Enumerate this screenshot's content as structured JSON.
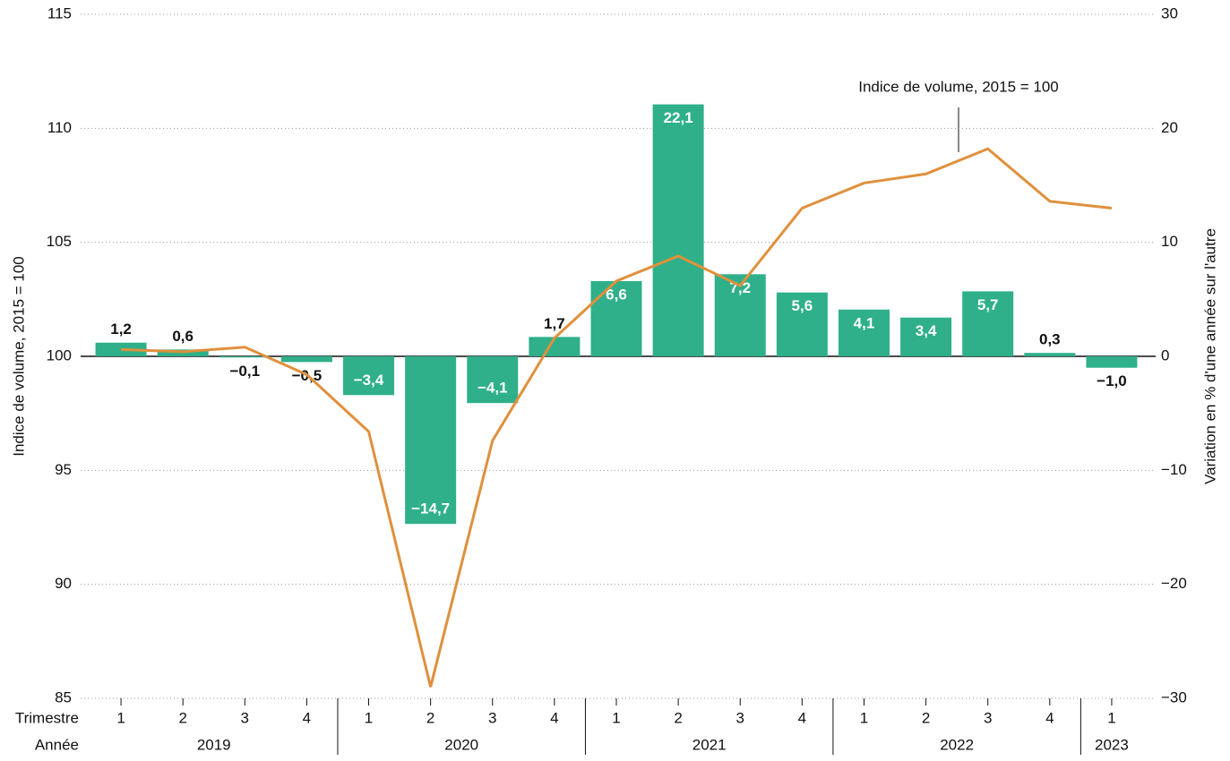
{
  "chart_data": {
    "type": "bar_line",
    "y_label": "Indice de volume, 2015 = 100",
    "y2_label": "Variation en % d'une année sur l'autre",
    "x_row_labels": [
      "Trimestre",
      "Année"
    ],
    "annotation": "Indice de volume, 2015 = 100",
    "categories": [
      "1",
      "2",
      "3",
      "4",
      "1",
      "2",
      "3",
      "4",
      "1",
      "2",
      "3",
      "4",
      "1",
      "2",
      "3",
      "4",
      "1"
    ],
    "year_groups": [
      {
        "label": "2019",
        "count": 4
      },
      {
        "label": "2020",
        "count": 4
      },
      {
        "label": "2021",
        "count": 4
      },
      {
        "label": "2022",
        "count": 4
      },
      {
        "label": "2023",
        "count": 1
      }
    ],
    "ylim": [
      85,
      115
    ],
    "yticks": [
      85,
      90,
      95,
      100,
      105,
      110,
      115
    ],
    "y2lim": [
      -30,
      30
    ],
    "y2ticks": [
      {
        "value": -30,
        "label": "−30"
      },
      {
        "value": -20,
        "label": "−20"
      },
      {
        "value": -10,
        "label": "−10"
      },
      0,
      10,
      20,
      30
    ],
    "grid": true,
    "series": [
      {
        "name": "Variation en % d'une année sur l'autre",
        "type": "bar",
        "axis": "y2",
        "color": "#2fb08a",
        "values": [
          1.2,
          0.6,
          -0.1,
          -0.5,
          -3.4,
          -14.7,
          -4.1,
          1.7,
          6.6,
          22.1,
          7.2,
          5.6,
          4.1,
          3.4,
          5.7,
          0.3,
          -1.0
        ],
        "value_labels": [
          "1,2",
          "0,6",
          "−0,1",
          "−0,5",
          "−3,4",
          "−14,7",
          "−4,1",
          "1,7",
          "6,6",
          "22,1",
          "7,2",
          "5,6",
          "4,1",
          "3,4",
          "5,7",
          "0,3",
          "−1,0"
        ]
      },
      {
        "name": "Indice de volume, 2015 = 100",
        "type": "line",
        "axis": "y",
        "color": "#e0903c",
        "values": [
          100.3,
          100.2,
          100.4,
          99.2,
          96.7,
          85.5,
          96.3,
          100.8,
          103.3,
          104.4,
          103.1,
          106.5,
          107.6,
          108.0,
          109.1,
          106.8,
          106.5
        ]
      }
    ]
  }
}
